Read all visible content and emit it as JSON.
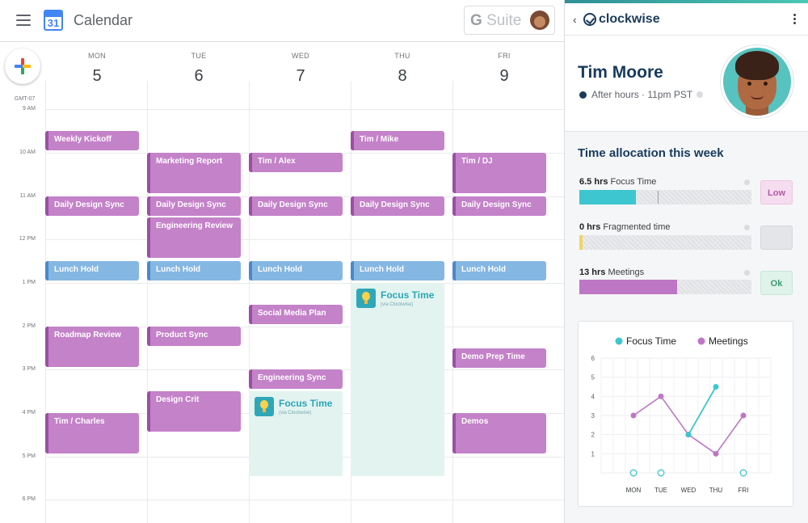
{
  "calendar": {
    "title": "Calendar",
    "logo_number": "31",
    "gsuite": {
      "g": "G",
      "suite": "Suite"
    },
    "timezone": "GMT-07",
    "hours": [
      "9 AM",
      "10 AM",
      "11 AM",
      "12 PM",
      "1 PM",
      "2 PM",
      "3 PM",
      "4 PM",
      "5 PM",
      "6 PM"
    ],
    "days": [
      {
        "name": "MON",
        "num": "5"
      },
      {
        "name": "TUE",
        "num": "6"
      },
      {
        "name": "WED",
        "num": "7"
      },
      {
        "name": "THU",
        "num": "8"
      },
      {
        "name": "FRI",
        "num": "9"
      }
    ],
    "events": {
      "mon_weekly_kickoff": "Weekly Kickoff",
      "mon_daily_design_sync": "Daily Design Sync",
      "mon_lunch_hold": "Lunch Hold",
      "mon_roadmap_review": "Roadmap Review",
      "mon_tim_charles": "Tim / Charles",
      "tue_marketing_report": "Marketing Report",
      "tue_daily_design_sync": "Daily Design Sync",
      "tue_engineering_review": "Engineering Review",
      "tue_lunch_hold": "Lunch Hold",
      "tue_product_sync": "Product Sync",
      "tue_design_crit": "Design Crit",
      "wed_tim_alex": "Tim / Alex",
      "wed_daily_design_sync": "Daily Design Sync",
      "wed_lunch_hold": "Lunch Hold",
      "wed_social_media_plan": "Social Media Plan",
      "wed_engineering_sync": "Engineering Sync",
      "thu_tim_mike": "Tim / Mike",
      "thu_daily_design_sync": "Daily Design Sync",
      "thu_lunch_hold": "Lunch Hold",
      "fri_tim_dj": "Tim / DJ",
      "fri_daily_design_sync": "Daily Design Sync",
      "fri_lunch_hold": "Lunch Hold",
      "fri_demo_prep_time": "Demo Prep Time",
      "fri_demos": "Demos"
    },
    "focus": {
      "title": "Focus Time",
      "subtitle": "(via Clockwise)"
    }
  },
  "panel": {
    "brand": "clockwise",
    "user_name": "Tim Moore",
    "status": "After hours · 11pm PST",
    "allocation_title": "Time allocation this week",
    "focus": {
      "value": "6.5 hrs",
      "label": "Focus Time",
      "badge": "Low",
      "fraction": 0.33
    },
    "fragmented": {
      "value": "0 hrs",
      "label": "Fragmented time",
      "fraction": 0.02
    },
    "meetings": {
      "value": "13 hrs",
      "label": "Meetings",
      "badge": "Ok",
      "fraction": 0.57
    },
    "colors": {
      "focus": "#3dc6d0",
      "meetings": "#bd77c4",
      "fragmented": "#f4d35e",
      "event": "#c482c9",
      "lunch": "#85b7e3"
    }
  },
  "chart_data": {
    "type": "line",
    "categories": [
      "MON",
      "TUE",
      "WED",
      "THU",
      "FRI"
    ],
    "series": [
      {
        "name": "Focus Time",
        "values": [
          0,
          0,
          2,
          4.5,
          0
        ]
      },
      {
        "name": "Meetings",
        "values": [
          3,
          4,
          2,
          1,
          3
        ]
      }
    ],
    "yticks": [
      "1",
      "2",
      "3",
      "4",
      "5",
      "6"
    ],
    "ylim": [
      0,
      6
    ],
    "grid": true,
    "legend": "top-center"
  }
}
